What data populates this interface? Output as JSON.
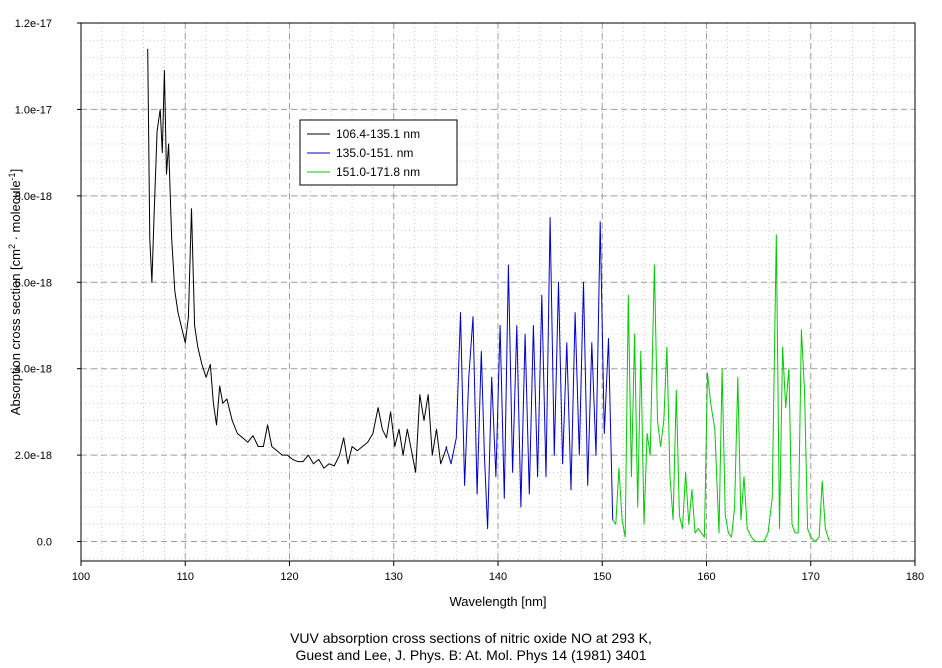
{
  "caption": {
    "line1": "VUV absorption cross sections of nitric oxide NO at 293 K,",
    "line2": "Guest and Lee, J. Phys. B: At. Mol. Phys 14 (1981) 3401"
  },
  "chart_data": {
    "type": "line",
    "title": "",
    "xlabel": "Wavelength [nm]",
    "ylabel": "Absorption cross section [cm² · molecule⁻¹]",
    "ylabel_parts": {
      "base": "Absorption cross section [cm",
      "sup1": "2",
      "mid": " · molecule",
      "sup2": "-1",
      "end": "]"
    },
    "xlim": [
      100,
      180
    ],
    "ylim": [
      -4.5e-19,
      1.2e-17
    ],
    "xticks": [
      100,
      110,
      120,
      130,
      140,
      150,
      160,
      170,
      180
    ],
    "xtick_labels": [
      "100",
      "110",
      "120",
      "130",
      "140",
      "150",
      "160",
      "170",
      "180"
    ],
    "yticks": [
      0,
      2e-18,
      4e-18,
      6e-18,
      8e-18,
      1e-17,
      1.2e-17
    ],
    "ytick_labels": [
      "0.0",
      "2.0e-18",
      "4.0e-18",
      "6.0e-18",
      "8.0e-18",
      "1.0e-17",
      "1.2e-17"
    ],
    "grid": true,
    "legend_position": "upper-left",
    "series": [
      {
        "name": "106.4-135.1 nm",
        "color": "#000000",
        "x": [
          106.4,
          106.6,
          106.8,
          107.0,
          107.3,
          107.6,
          107.8,
          108.0,
          108.2,
          108.4,
          108.7,
          109.0,
          109.3,
          109.6,
          110.0,
          110.3,
          110.6,
          110.9,
          111.2,
          111.6,
          112.0,
          112.4,
          112.7,
          113.0,
          113.3,
          113.6,
          114.0,
          114.5,
          115.0,
          115.5,
          116.0,
          116.5,
          117.0,
          117.5,
          117.9,
          118.3,
          118.8,
          119.3,
          119.8,
          120.3,
          120.8,
          121.3,
          121.8,
          122.3,
          122.8,
          123.3,
          123.8,
          124.3,
          124.8,
          125.2,
          125.6,
          126.0,
          126.5,
          127.0,
          127.5,
          128.0,
          128.5,
          128.9,
          129.3,
          129.7,
          130.1,
          130.5,
          130.9,
          131.3,
          131.7,
          132.1,
          132.5,
          132.9,
          133.3,
          133.7,
          134.1,
          134.5,
          135.1
        ],
        "y": [
          1.14e-17,
          7e-18,
          6e-18,
          7.5e-18,
          9.5e-18,
          1e-17,
          9e-18,
          1.09e-17,
          8.5e-18,
          9.2e-18,
          7e-18,
          5.8e-18,
          5.3e-18,
          5e-18,
          4.6e-18,
          5.2e-18,
          7.7e-18,
          5e-18,
          4.5e-18,
          4.1e-18,
          3.8e-18,
          4.1e-18,
          3.2e-18,
          2.7e-18,
          3.6e-18,
          3.2e-18,
          3.3e-18,
          2.8e-18,
          2.5e-18,
          2.4e-18,
          2.3e-18,
          2.45e-18,
          2.2e-18,
          2.2e-18,
          2.7e-18,
          2.2e-18,
          2.1e-18,
          2e-18,
          2e-18,
          1.9e-18,
          1.85e-18,
          1.85e-18,
          2e-18,
          1.8e-18,
          1.9e-18,
          1.7e-18,
          1.8e-18,
          1.75e-18,
          2e-18,
          2.4e-18,
          1.8e-18,
          2.2e-18,
          2.1e-18,
          2.2e-18,
          2.3e-18,
          2.5e-18,
          3.1e-18,
          2.6e-18,
          2.4e-18,
          3e-18,
          2.2e-18,
          2.6e-18,
          2e-18,
          2.6e-18,
          2.1e-18,
          1.6e-18,
          3.4e-18,
          2.8e-18,
          3.4e-18,
          2e-18,
          2.6e-18,
          1.8e-18,
          2.2e-18
        ]
      },
      {
        "name": "135.0-151. nm",
        "color": "#0000cc",
        "x": [
          135.0,
          135.5,
          136.0,
          136.4,
          136.8,
          137.2,
          137.6,
          138.0,
          138.4,
          138.7,
          139.0,
          139.4,
          139.8,
          140.2,
          140.6,
          141.0,
          141.4,
          141.8,
          142.2,
          142.6,
          143.0,
          143.4,
          143.8,
          144.2,
          144.6,
          145.0,
          145.4,
          145.8,
          146.2,
          146.6,
          147.0,
          147.4,
          147.8,
          148.2,
          148.6,
          149.0,
          149.4,
          149.8,
          150.2,
          150.6,
          151.0
        ],
        "y": [
          2.2e-18,
          1.8e-18,
          2.4e-18,
          5.3e-18,
          1.3e-18,
          3.8e-18,
          5.2e-18,
          1.1e-18,
          4.4e-18,
          2e-18,
          3e-19,
          3.8e-18,
          1.5e-18,
          5e-18,
          1e-18,
          6.4e-18,
          1.6e-18,
          5e-18,
          8e-19,
          4.8e-18,
          1.1e-18,
          5e-18,
          1.5e-18,
          5.7e-18,
          1.5e-18,
          7.5e-18,
          2e-18,
          6e-18,
          1.8e-18,
          4.6e-18,
          1.2e-18,
          5.3e-18,
          2e-18,
          6e-18,
          1.3e-18,
          4.6e-18,
          2e-18,
          7.4e-18,
          2.5e-18,
          4.7e-18,
          5e-19
        ]
      },
      {
        "name": "151.0-171.8 nm",
        "color": "#00cc00",
        "x": [
          151.0,
          151.3,
          151.6,
          151.9,
          152.2,
          152.5,
          152.8,
          153.1,
          153.4,
          153.7,
          154.0,
          154.3,
          154.6,
          155.0,
          155.3,
          155.6,
          155.9,
          156.2,
          156.5,
          156.8,
          157.1,
          157.4,
          157.7,
          158.0,
          158.3,
          158.6,
          158.9,
          159.2,
          159.5,
          159.8,
          160.1,
          160.4,
          160.8,
          161.2,
          161.5,
          161.8,
          162.1,
          162.4,
          162.7,
          163.0,
          163.3,
          163.6,
          163.9,
          164.3,
          164.7,
          165.1,
          165.5,
          165.9,
          166.3,
          166.7,
          167.0,
          167.3,
          167.6,
          167.9,
          168.2,
          168.5,
          168.8,
          169.1,
          169.4,
          169.7,
          170.0,
          170.4,
          170.8,
          171.1,
          171.4,
          171.8
        ],
        "y": [
          5e-19,
          4e-19,
          1.7e-18,
          5e-19,
          1e-19,
          5.7e-18,
          1.5e-18,
          4.8e-18,
          8e-19,
          4.4e-18,
          4e-19,
          2.5e-18,
          2e-18,
          6.4e-18,
          2.8e-18,
          2.2e-18,
          2.8e-18,
          4.5e-18,
          1.5e-18,
          5e-19,
          3.5e-18,
          6e-19,
          3e-19,
          1.6e-18,
          4e-19,
          1.2e-18,
          2e-19,
          3e-19,
          2e-19,
          1e-19,
          3.9e-18,
          3.2e-18,
          2.6e-18,
          2e-19,
          4e-18,
          6e-19,
          2e-19,
          1e-19,
          8e-19,
          3.8e-18,
          5e-19,
          1.5e-18,
          3e-19,
          1e-19,
          0.0,
          0.0,
          0.0,
          2e-19,
          1e-18,
          7.1e-18,
          3e-19,
          4.5e-18,
          3.1e-18,
          4e-18,
          4e-19,
          2e-19,
          2e-19,
          4.9e-18,
          3.5e-18,
          3e-19,
          1e-19,
          0.0,
          1e-19,
          1.4e-18,
          3e-19,
          0.0
        ]
      }
    ]
  }
}
